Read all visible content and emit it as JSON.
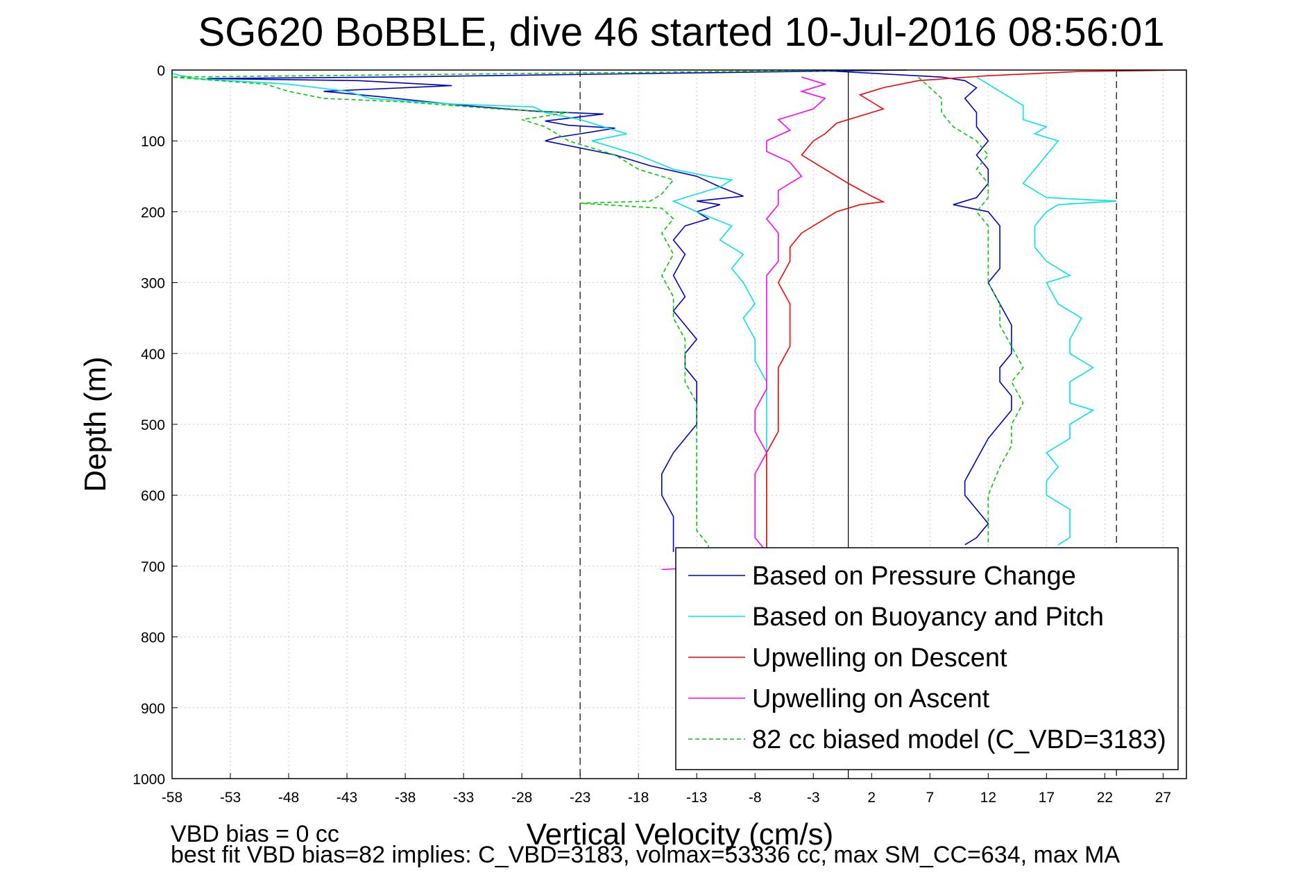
{
  "chart_data": {
    "type": "line",
    "title": "SG620 BoBBLE, dive 46 started 10-Jul-2016 08:56:01",
    "xlabel": "Vertical Velocity (cm/s)",
    "ylabel": "Depth (m)",
    "xlim": [
      -58,
      29
    ],
    "ylim": [
      0,
      1000
    ],
    "y_reversed": true,
    "grid": true,
    "legend_position": "bottom-right",
    "xticks": [
      "-58",
      "-53",
      "-48",
      "-43",
      "-38",
      "-33",
      "-28",
      "-23",
      "-18",
      "-13",
      "-8",
      "-3",
      "2",
      "7",
      "12",
      "17",
      "22",
      "27"
    ],
    "yticks": [
      "0",
      "100",
      "200",
      "300",
      "400",
      "500",
      "600",
      "700",
      "800",
      "900",
      "1000"
    ],
    "reference_lines": {
      "dashed_x": [
        -23,
        23
      ],
      "solid_x": [
        0
      ]
    },
    "footnotes": {
      "line1": "VBD bias = 0 cc",
      "line2": "best fit VBD bias=82 implies: C_VBD=3183, volmax=53336 cc, max SM_CC=634, max MA"
    },
    "series": [
      {
        "name": "Based on Pressure Change",
        "color": "#0000cc",
        "style": "solid",
        "points": [
          [
            5,
            0
          ],
          [
            -40,
            10
          ],
          [
            -55,
            12
          ],
          [
            -42,
            15
          ],
          [
            -34,
            22
          ],
          [
            -45,
            30
          ],
          [
            -40,
            38
          ],
          [
            -33,
            50
          ],
          [
            -27,
            58
          ],
          [
            -21,
            62
          ],
          [
            -26,
            72
          ],
          [
            -24,
            78
          ],
          [
            -20,
            82
          ],
          [
            -23,
            90
          ],
          [
            -25,
            95
          ],
          [
            -26,
            100
          ],
          [
            -20,
            120
          ],
          [
            -17,
            135
          ],
          [
            -13,
            150
          ],
          [
            -11,
            165
          ],
          [
            -9,
            178
          ],
          [
            -13,
            185
          ],
          [
            -11,
            190
          ],
          [
            -13,
            200
          ],
          [
            -12,
            210
          ],
          [
            -14,
            220
          ],
          [
            -15,
            240
          ],
          [
            -14,
            260
          ],
          [
            -15,
            290
          ],
          [
            -14,
            320
          ],
          [
            -15,
            340
          ],
          [
            -14,
            360
          ],
          [
            -13,
            380
          ],
          [
            -14,
            400
          ],
          [
            -14,
            420
          ],
          [
            -13,
            440
          ],
          [
            -13,
            470
          ],
          [
            -13,
            500
          ],
          [
            -14,
            520
          ],
          [
            -15,
            540
          ],
          [
            -16,
            570
          ],
          [
            -16,
            600
          ],
          [
            -15,
            630
          ],
          [
            -15,
            650
          ],
          [
            -15,
            680
          ],
          [
            -3,
            0
          ],
          [
            8,
            10
          ],
          [
            10,
            15
          ],
          [
            11,
            25
          ],
          [
            10,
            40
          ],
          [
            11,
            60
          ],
          [
            11,
            80
          ],
          [
            12,
            100
          ],
          [
            11,
            120
          ],
          [
            12,
            140
          ],
          [
            12,
            160
          ],
          [
            11,
            180
          ],
          [
            9,
            190
          ],
          [
            12,
            200
          ],
          [
            13,
            220
          ],
          [
            13,
            250
          ],
          [
            13,
            280
          ],
          [
            12,
            300
          ],
          [
            13,
            330
          ],
          [
            14,
            360
          ],
          [
            14,
            380
          ],
          [
            14,
            400
          ],
          [
            13,
            420
          ],
          [
            13,
            440
          ],
          [
            14,
            460
          ],
          [
            14,
            480
          ],
          [
            13,
            500
          ],
          [
            12,
            520
          ],
          [
            11,
            550
          ],
          [
            10,
            580
          ],
          [
            10,
            600
          ],
          [
            11,
            620
          ],
          [
            12,
            640
          ],
          [
            11,
            660
          ],
          [
            10,
            670
          ]
        ]
      },
      {
        "name": "Based on Buoyancy and Pitch",
        "color": "#00e5e5",
        "style": "solid",
        "points": [
          [
            -58,
            5
          ],
          [
            -56,
            12
          ],
          [
            -48,
            20
          ],
          [
            -43,
            30
          ],
          [
            -41,
            40
          ],
          [
            -34,
            48
          ],
          [
            -27,
            52
          ],
          [
            -26,
            60
          ],
          [
            -23,
            70
          ],
          [
            -21,
            80
          ],
          [
            -19,
            90
          ],
          [
            -22,
            100
          ],
          [
            -18,
            120
          ],
          [
            -15,
            140
          ],
          [
            -12,
            150
          ],
          [
            -10,
            155
          ],
          [
            -11,
            165
          ],
          [
            -13,
            175
          ],
          [
            -15,
            185
          ],
          [
            -13,
            200
          ],
          [
            -10,
            220
          ],
          [
            -11,
            240
          ],
          [
            -9,
            260
          ],
          [
            -10,
            280
          ],
          [
            -9,
            300
          ],
          [
            -8,
            330
          ],
          [
            -9,
            350
          ],
          [
            -8,
            380
          ],
          [
            -8,
            410
          ],
          [
            -7,
            440
          ],
          [
            -7,
            470
          ],
          [
            -7,
            500
          ],
          [
            -7,
            520
          ],
          [
            -7,
            550
          ],
          [
            -7,
            580
          ],
          [
            -7,
            610
          ],
          [
            -7,
            650
          ],
          [
            -7,
            680
          ],
          [
            11,
            10
          ],
          [
            13,
            30
          ],
          [
            15,
            50
          ],
          [
            15,
            70
          ],
          [
            17,
            80
          ],
          [
            16,
            90
          ],
          [
            18,
            100
          ],
          [
            17,
            120
          ],
          [
            16,
            140
          ],
          [
            15,
            160
          ],
          [
            17,
            180
          ],
          [
            23,
            185
          ],
          [
            18,
            190
          ],
          [
            17,
            200
          ],
          [
            16,
            220
          ],
          [
            16,
            250
          ],
          [
            17,
            270
          ],
          [
            19,
            290
          ],
          [
            17,
            300
          ],
          [
            18,
            330
          ],
          [
            20,
            350
          ],
          [
            19,
            380
          ],
          [
            19,
            400
          ],
          [
            21,
            420
          ],
          [
            19,
            440
          ],
          [
            19,
            470
          ],
          [
            21,
            480
          ],
          [
            19,
            500
          ],
          [
            19,
            520
          ],
          [
            17,
            540
          ],
          [
            18,
            560
          ],
          [
            17,
            580
          ],
          [
            17,
            600
          ],
          [
            19,
            620
          ],
          [
            19,
            640
          ],
          [
            19,
            660
          ],
          [
            18,
            670
          ]
        ]
      },
      {
        "name": "Upwelling on Descent",
        "color": "#ff0000",
        "style": "solid",
        "points": [
          [
            29,
            0
          ],
          [
            20,
            2
          ],
          [
            12,
            8
          ],
          [
            6,
            15
          ],
          [
            3,
            25
          ],
          [
            1,
            35
          ],
          [
            2,
            45
          ],
          [
            3,
            55
          ],
          [
            1,
            65
          ],
          [
            -1,
            75
          ],
          [
            -2,
            90
          ],
          [
            -3,
            100
          ],
          [
            -4,
            120
          ],
          [
            -2,
            140
          ],
          [
            0,
            160
          ],
          [
            2,
            178
          ],
          [
            3,
            186
          ],
          [
            1,
            190
          ],
          [
            -1,
            200
          ],
          [
            -2,
            210
          ],
          [
            -4,
            230
          ],
          [
            -5,
            250
          ],
          [
            -5,
            270
          ],
          [
            -6,
            300
          ],
          [
            -5,
            330
          ],
          [
            -5,
            360
          ],
          [
            -5,
            390
          ],
          [
            -6,
            420
          ],
          [
            -6,
            450
          ],
          [
            -6,
            480
          ],
          [
            -6,
            510
          ],
          [
            -7,
            540
          ],
          [
            -7,
            570
          ],
          [
            -7,
            600
          ],
          [
            -7,
            640
          ],
          [
            -7,
            660
          ],
          [
            -7,
            680
          ]
        ]
      },
      {
        "name": "Upwelling on Ascent",
        "color": "#ff00ff",
        "style": "solid",
        "points": [
          [
            -4,
            10
          ],
          [
            -2,
            20
          ],
          [
            -4,
            30
          ],
          [
            -2,
            40
          ],
          [
            -3,
            55
          ],
          [
            -6,
            70
          ],
          [
            -5,
            85
          ],
          [
            -7,
            100
          ],
          [
            -7,
            115
          ],
          [
            -5,
            130
          ],
          [
            -4,
            150
          ],
          [
            -6,
            170
          ],
          [
            -6,
            190
          ],
          [
            -7,
            210
          ],
          [
            -6,
            230
          ],
          [
            -6,
            250
          ],
          [
            -6,
            270
          ],
          [
            -7,
            290
          ],
          [
            -7,
            310
          ],
          [
            -7,
            330
          ],
          [
            -7,
            360
          ],
          [
            -7,
            390
          ],
          [
            -7,
            420
          ],
          [
            -7,
            450
          ],
          [
            -8,
            480
          ],
          [
            -8,
            510
          ],
          [
            -7,
            540
          ],
          [
            -8,
            570
          ],
          [
            -8,
            600
          ],
          [
            -8,
            630
          ],
          [
            -8,
            660
          ],
          [
            -7,
            680
          ],
          [
            -11,
            700
          ],
          [
            -16,
            705
          ]
        ]
      },
      {
        "name": "82 cc biased model (C_VBD=3183)",
        "color": "#00cc00",
        "style": "dashed",
        "points": [
          [
            2,
            0
          ],
          [
            -58,
            10
          ],
          [
            -50,
            20
          ],
          [
            -48,
            30
          ],
          [
            -45,
            40
          ],
          [
            -38,
            45
          ],
          [
            -30,
            55
          ],
          [
            -24,
            60
          ],
          [
            -28,
            70
          ],
          [
            -26,
            80
          ],
          [
            -24,
            100
          ],
          [
            -20,
            120
          ],
          [
            -18,
            140
          ],
          [
            -15,
            155
          ],
          [
            -16,
            175
          ],
          [
            -17,
            185
          ],
          [
            -23,
            188
          ],
          [
            -16,
            195
          ],
          [
            -15,
            210
          ],
          [
            -16,
            230
          ],
          [
            -15,
            260
          ],
          [
            -16,
            290
          ],
          [
            -15,
            320
          ],
          [
            -15,
            350
          ],
          [
            -14,
            380
          ],
          [
            -14,
            410
          ],
          [
            -14,
            440
          ],
          [
            -13,
            470
          ],
          [
            -13,
            500
          ],
          [
            -13,
            530
          ],
          [
            -13,
            560
          ],
          [
            -13,
            590
          ],
          [
            -13,
            620
          ],
          [
            -13,
            650
          ],
          [
            -12,
            670
          ],
          [
            -12,
            680
          ],
          [
            6,
            10
          ],
          [
            7,
            25
          ],
          [
            8,
            40
          ],
          [
            8,
            60
          ],
          [
            9,
            80
          ],
          [
            10,
            90
          ],
          [
            11,
            100
          ],
          [
            12,
            120
          ],
          [
            11,
            140
          ],
          [
            12,
            160
          ],
          [
            12,
            180
          ],
          [
            11,
            200
          ],
          [
            12,
            220
          ],
          [
            12,
            250
          ],
          [
            12,
            280
          ],
          [
            12,
            300
          ],
          [
            13,
            330
          ],
          [
            13,
            360
          ],
          [
            14,
            390
          ],
          [
            15,
            420
          ],
          [
            14,
            440
          ],
          [
            15,
            470
          ],
          [
            14,
            500
          ],
          [
            14,
            530
          ],
          [
            13,
            560
          ],
          [
            12,
            600
          ],
          [
            12,
            630
          ],
          [
            12,
            660
          ],
          [
            12,
            670
          ]
        ]
      }
    ]
  }
}
